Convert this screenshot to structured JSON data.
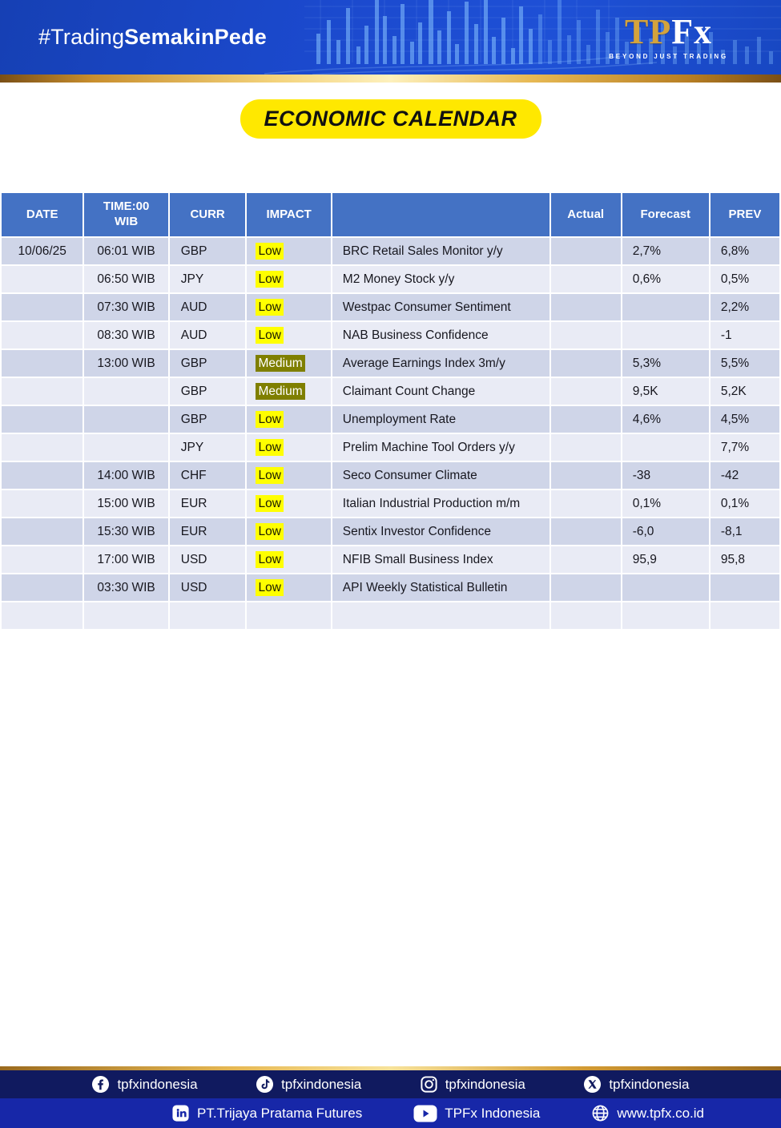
{
  "banner": {
    "hashtag_prefix": "#Trading",
    "hashtag_bold": "SemakinPede",
    "logo_tp": "TP",
    "logo_fx": "Fx",
    "logo_tagline": "BEYOND JUST TRADING"
  },
  "title": "ECONOMIC CALENDAR",
  "table": {
    "header": {
      "date": "DATE",
      "time_line1": "TIME:00",
      "time_line2": "WIB",
      "curr": "CURR",
      "impact": "IMPACT",
      "event": "",
      "actual": "Actual",
      "forecast": "Forecast",
      "prev": "PREV"
    },
    "rows": [
      {
        "date": "10/06/25",
        "time": "06:01 WIB",
        "curr": "GBP",
        "impact": "Low",
        "event": "BRC Retail Sales Monitor y/y",
        "actual": "",
        "forecast": "2,7%",
        "prev": "6,8%"
      },
      {
        "date": "",
        "time": "06:50 WIB",
        "curr": "JPY",
        "impact": "Low",
        "event": "M2 Money Stock y/y",
        "actual": "",
        "forecast": "0,6%",
        "prev": "0,5%"
      },
      {
        "date": "",
        "time": "07:30 WIB",
        "curr": "AUD",
        "impact": "Low",
        "event": "Westpac Consumer Sentiment",
        "actual": "",
        "forecast": "",
        "prev": "2,2%"
      },
      {
        "date": "",
        "time": "08:30 WIB",
        "curr": "AUD",
        "impact": "Low",
        "event": "NAB Business Confidence",
        "actual": "",
        "forecast": "",
        "prev": "-1"
      },
      {
        "date": "",
        "time": "13:00 WIB",
        "curr": "GBP",
        "impact": "Medium",
        "event": "Average Earnings Index 3m/y",
        "actual": "",
        "forecast": "5,3%",
        "prev": "5,5%"
      },
      {
        "date": "",
        "time": "",
        "curr": "GBP",
        "impact": "Medium",
        "event": "Claimant Count Change",
        "actual": "",
        "forecast": "9,5K",
        "prev": "5,2K"
      },
      {
        "date": "",
        "time": "",
        "curr": "GBP",
        "impact": "Low",
        "event": "Unemployment Rate",
        "actual": "",
        "forecast": "4,6%",
        "prev": "4,5%"
      },
      {
        "date": "",
        "time": "",
        "curr": "JPY",
        "impact": "Low",
        "event": "Prelim Machine Tool Orders y/y",
        "actual": "",
        "forecast": "",
        "prev": "7,7%"
      },
      {
        "date": "",
        "time": "14:00 WIB",
        "curr": "CHF",
        "impact": "Low",
        "event": "Seco Consumer Climate",
        "actual": "",
        "forecast": "-38",
        "prev": "-42"
      },
      {
        "date": "",
        "time": "15:00 WIB",
        "curr": "EUR",
        "impact": "Low",
        "event": "Italian Industrial Production m/m",
        "actual": "",
        "forecast": "0,1%",
        "prev": "0,1%"
      },
      {
        "date": "",
        "time": "15:30 WIB",
        "curr": "EUR",
        "impact": "Low",
        "event": "Sentix Investor Confidence",
        "actual": "",
        "forecast": "-6,0",
        "prev": "-8,1"
      },
      {
        "date": "",
        "time": "17:00 WIB",
        "curr": "USD",
        "impact": "Low",
        "event": "NFIB Small Business Index",
        "actual": "",
        "forecast": "95,9",
        "prev": "95,8"
      },
      {
        "date": "",
        "time": "03:30 WIB",
        "curr": "USD",
        "impact": "Low",
        "event": "API Weekly Statistical Bulletin",
        "actual": "",
        "forecast": "",
        "prev": ""
      },
      {
        "date": "",
        "time": "",
        "curr": "",
        "impact": "",
        "event": "",
        "actual": "",
        "forecast": "",
        "prev": ""
      }
    ]
  },
  "footer": {
    "social": [
      {
        "icon": "facebook-icon",
        "label": "tpfxindonesia"
      },
      {
        "icon": "tiktok-icon",
        "label": "tpfxindonesia"
      },
      {
        "icon": "instagram-icon",
        "label": "tpfxindonesia"
      },
      {
        "icon": "x-icon",
        "label": "tpfxindonesia"
      }
    ],
    "links": [
      {
        "icon": "linkedin-icon",
        "label": "PT.Trijaya Pratama Futures"
      },
      {
        "icon": "youtube-icon",
        "label": "TPFx Indonesia"
      },
      {
        "icon": "globe-icon",
        "label": "www.tpfx.co.id"
      }
    ]
  },
  "colors": {
    "banner_blue": "#1b49cd",
    "gold": "#d9a43b",
    "title_yellow": "#ffe800",
    "header_blue": "#4472c4",
    "row_dark": "#cfd5e8",
    "row_light": "#e9ebf5",
    "impact_low_bg": "#ffff00",
    "impact_medium_bg": "#7f7f00",
    "footer_navy": "#101a5f",
    "footer_blue": "#1727a8",
    "text_dark": "#17171f"
  }
}
